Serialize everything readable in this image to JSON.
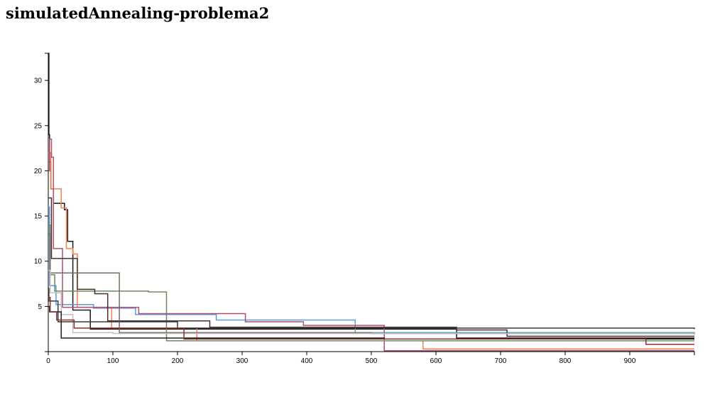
{
  "page": {
    "title": "simulatedAnnealing-problema2"
  },
  "chart_data": {
    "type": "line",
    "title": "",
    "xlabel": "",
    "ylabel": "",
    "xlim": [
      0,
      1000
    ],
    "ylim": [
      0,
      33
    ],
    "x_ticks": [
      0,
      100,
      200,
      300,
      400,
      500,
      600,
      700,
      800,
      900
    ],
    "y_ticks": [
      5,
      10,
      15,
      20,
      25,
      30
    ],
    "grid": false,
    "legend": "none",
    "step": true,
    "series": [
      {
        "color": "#1a1a1a",
        "points": [
          [
            0,
            33
          ],
          [
            1,
            24
          ],
          [
            2,
            21
          ],
          [
            4,
            18
          ],
          [
            8,
            16.4
          ],
          [
            25,
            15.7
          ],
          [
            30,
            12.2
          ],
          [
            38,
            4.6
          ],
          [
            65,
            2.5
          ],
          [
            100,
            2.5
          ],
          [
            260,
            2.5
          ],
          [
            632,
            1.5
          ],
          [
            1000,
            1.5
          ]
        ]
      },
      {
        "color": "#5a9bd5",
        "points": [
          [
            0,
            16
          ],
          [
            2,
            7.3
          ],
          [
            12,
            5.2
          ],
          [
            70,
            4.8
          ],
          [
            135,
            4.1
          ],
          [
            260,
            3.5
          ],
          [
            475,
            2.1
          ],
          [
            1000,
            1.9
          ]
        ]
      },
      {
        "color": "#f08050",
        "points": [
          [
            0,
            22
          ],
          [
            4,
            18
          ],
          [
            20,
            15.9
          ],
          [
            28,
            11.4
          ],
          [
            38,
            10.8
          ],
          [
            45,
            4.9
          ],
          [
            98,
            2.6
          ],
          [
            230,
            1.2
          ],
          [
            580,
            0.3
          ],
          [
            1000,
            0.3
          ]
        ]
      },
      {
        "color": "#b05070",
        "points": [
          [
            0,
            20
          ],
          [
            2,
            23.5
          ],
          [
            5,
            21.5
          ],
          [
            8,
            11.4
          ],
          [
            22,
            4.9
          ],
          [
            140,
            4.2
          ],
          [
            305,
            3.3
          ],
          [
            395,
            2.9
          ],
          [
            520,
            0.1
          ],
          [
            1000,
            0.1
          ]
        ]
      },
      {
        "color": "#6b8a60",
        "points": [
          [
            0,
            14
          ],
          [
            3,
            8.5
          ],
          [
            10,
            6.7
          ],
          [
            155,
            6.6
          ],
          [
            183,
            1.2
          ],
          [
            1000,
            1.2
          ]
        ]
      },
      {
        "color": "#4a2f2a",
        "points": [
          [
            0,
            17
          ],
          [
            5,
            10.3
          ],
          [
            45,
            6.9
          ],
          [
            72,
            6.4
          ],
          [
            92,
            3.4
          ],
          [
            250,
            2.7
          ],
          [
            632,
            2.4
          ],
          [
            710,
            1.7
          ],
          [
            1000,
            1.7
          ]
        ]
      },
      {
        "color": "#7a6a5a",
        "points": [
          [
            0,
            13
          ],
          [
            3,
            8.7
          ],
          [
            110,
            2.1
          ],
          [
            500,
            2.0
          ],
          [
            1000,
            2.0
          ]
        ]
      },
      {
        "color": "#c0c0c0",
        "points": [
          [
            0,
            9
          ],
          [
            3,
            6.5
          ],
          [
            20,
            4.1
          ],
          [
            38,
            2.1
          ],
          [
            100,
            2.0
          ],
          [
            1000,
            2.0
          ]
        ]
      },
      {
        "color": "#3a3a3a",
        "points": [
          [
            0,
            7
          ],
          [
            1,
            5.6
          ],
          [
            15,
            3.3
          ],
          [
            200,
            2.6
          ],
          [
            1000,
            2.5
          ]
        ]
      },
      {
        "color": "#222222",
        "points": [
          [
            0,
            5
          ],
          [
            2,
            4.4
          ],
          [
            20,
            1.5
          ],
          [
            210,
            1.5
          ],
          [
            520,
            1.4
          ],
          [
            1000,
            1.4
          ]
        ]
      },
      {
        "color": "#8a3030",
        "points": [
          [
            0,
            6
          ],
          [
            3,
            4.4
          ],
          [
            13,
            3.5
          ],
          [
            40,
            2.6
          ],
          [
            210,
            1.4
          ],
          [
            925,
            0.8
          ],
          [
            1000,
            0.8
          ]
        ]
      }
    ]
  }
}
